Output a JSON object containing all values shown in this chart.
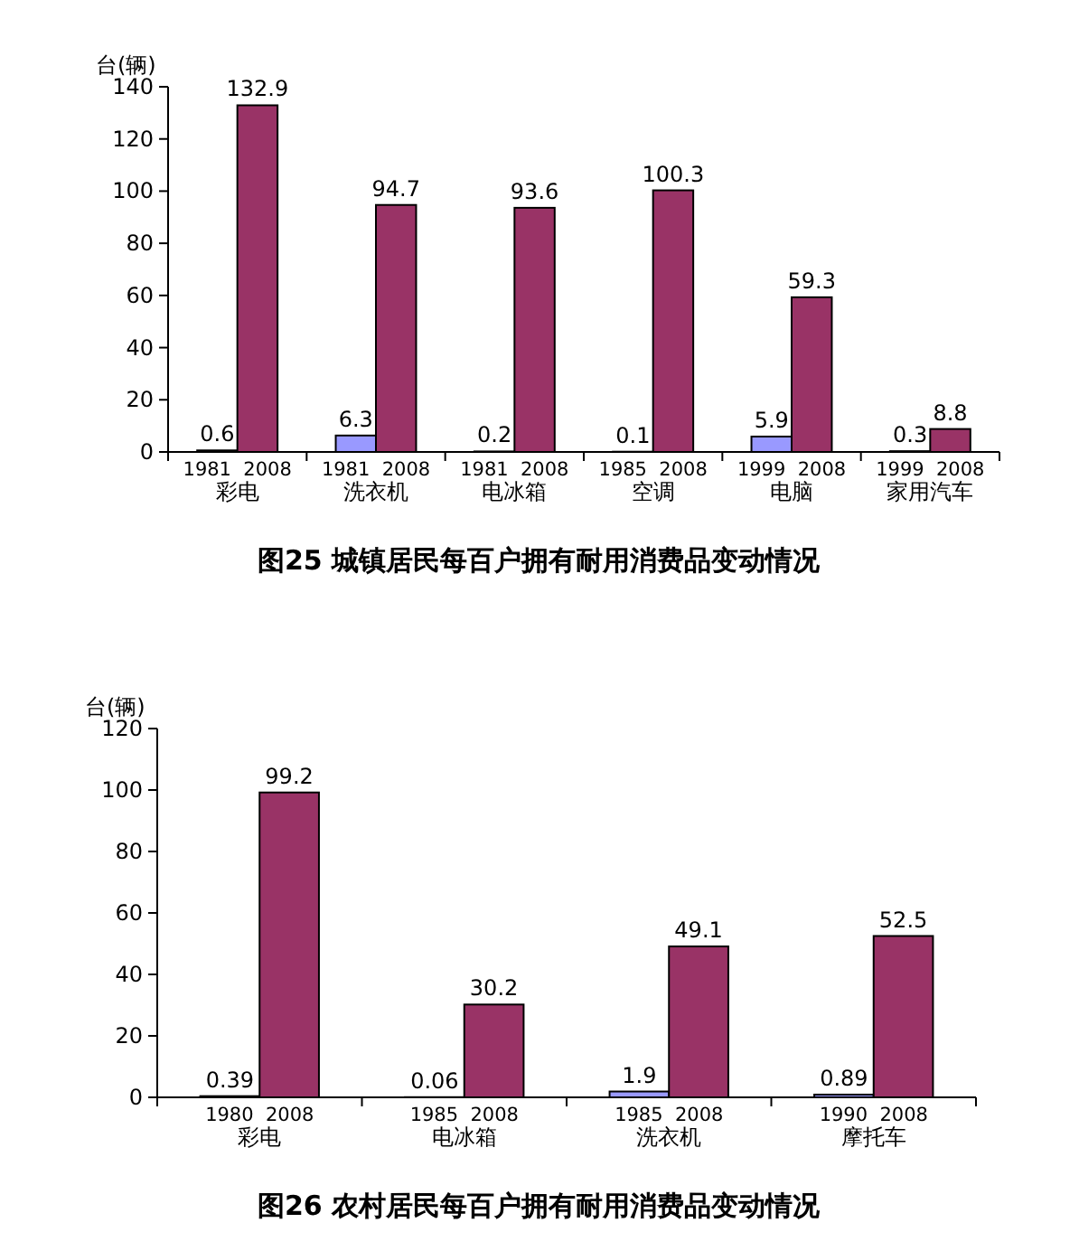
{
  "chart_data": [
    {
      "type": "bar",
      "title": "图25  城镇居民每百户拥有耐用消费品变动情况",
      "ylabel": "台(辆)",
      "categories": [
        "1981  2008\n彩电",
        "1981  2008\n洗衣机",
        "1981  2008\n电冰箱",
        "1985  2008\n空调",
        "1999  2008\n电脑",
        "1999  2008\n家用汽车"
      ],
      "series": [
        {
          "color": "#9999ff",
          "values": [
            0.6,
            6.3,
            0.2,
            0.1,
            5.9,
            0.3
          ]
        },
        {
          "color": "#993366",
          "values": [
            132.9,
            94.7,
            93.6,
            100.3,
            59.3,
            8.8
          ]
        }
      ],
      "ylim": [
        0,
        140
      ],
      "yticks": [
        0,
        20,
        40,
        60,
        80,
        100,
        120,
        140
      ],
      "data_labels": true
    },
    {
      "type": "bar",
      "title": "图26  农村居民每百户拥有耐用消费品变动情况",
      "ylabel": "台(辆)",
      "categories": [
        "1980  2008\n彩电",
        "1985  2008\n电冰箱",
        "1985  2008\n洗衣机",
        "1990  2008\n摩托车"
      ],
      "series": [
        {
          "color": "#9999ff",
          "values": [
            0.39,
            0.06,
            1.9,
            0.89
          ]
        },
        {
          "color": "#993366",
          "values": [
            99.2,
            30.2,
            49.1,
            52.5
          ]
        }
      ],
      "ylim": [
        0,
        120
      ],
      "yticks": [
        0,
        20,
        40,
        60,
        80,
        100,
        120
      ],
      "data_labels": true
    }
  ]
}
